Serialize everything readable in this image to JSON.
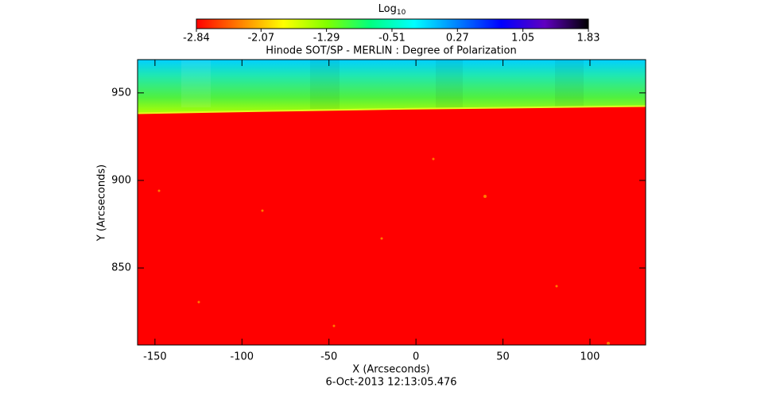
{
  "chart_data": {
    "type": "heatmap",
    "title": "Hinode SOT/SP - MERLIN : Degree of Polarization",
    "x_label": "X (Arcseconds)",
    "y_label": "Y (Arcseconds)",
    "footer": "6-Oct-2013 12:13:05.476",
    "xlim": [
      -160,
      132
    ],
    "xticks": [
      -150,
      -100,
      -50,
      0,
      50,
      100
    ],
    "ylim": [
      806,
      969
    ],
    "yticks": [
      850,
      900,
      950
    ],
    "colorbar": {
      "label": "Log",
      "label_sub": "10",
      "lim": [
        -2.84,
        1.83
      ],
      "ticks": [
        -2.84,
        -2.07,
        -1.29,
        -0.51,
        0.27,
        1.05,
        1.83
      ],
      "colors": [
        "#ff0000",
        "#ff8000",
        "#ffff00",
        "#80ff00",
        "#00ff80",
        "#00ffff",
        "#0080ff",
        "#0000ff",
        "#6000c0",
        "#000000"
      ]
    }
  }
}
